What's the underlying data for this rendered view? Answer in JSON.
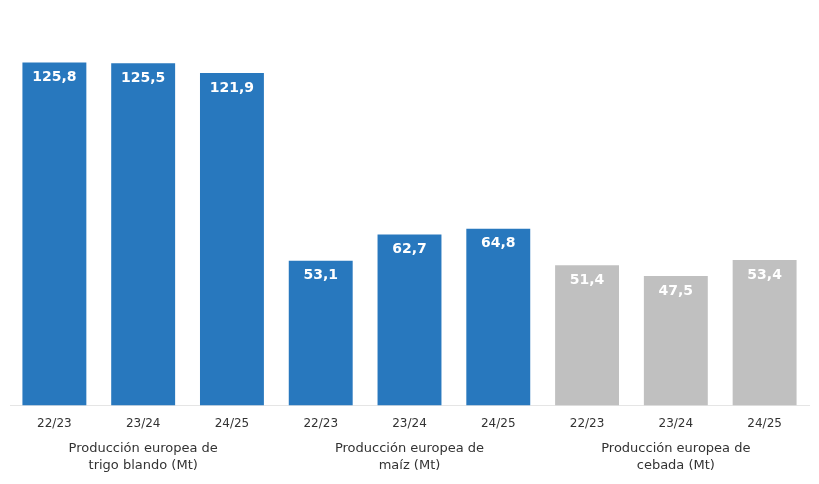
{
  "chart_data": {
    "type": "bar",
    "categories": [
      "22/23",
      "23/24",
      "24/25",
      "22/23",
      "23/24",
      "24/25",
      "22/23",
      "23/24",
      "24/25"
    ],
    "values": [
      125.8,
      125.5,
      121.9,
      53.1,
      62.7,
      64.8,
      51.4,
      47.5,
      53.4
    ],
    "value_labels": [
      "125,8",
      "125,5",
      "121,9",
      "53,1",
      "62,7",
      "64,8",
      "51,4",
      "47,5",
      "53,4"
    ],
    "colors": [
      "#2878BE",
      "#2878BE",
      "#2878BE",
      "#2878BE",
      "#2878BE",
      "#2878BE",
      "#C0C0C0",
      "#C0C0C0",
      "#C0C0C0"
    ],
    "group_labels": [
      "Producción europea de\ntrigo blando (Mt)",
      "Producción europea de\nmaíz (Mt)",
      "Producción europea de\ncebada (Mt)"
    ],
    "ylim": [
      0,
      145
    ],
    "data_labels": true,
    "tick_labels": "x",
    "grid": false
  }
}
